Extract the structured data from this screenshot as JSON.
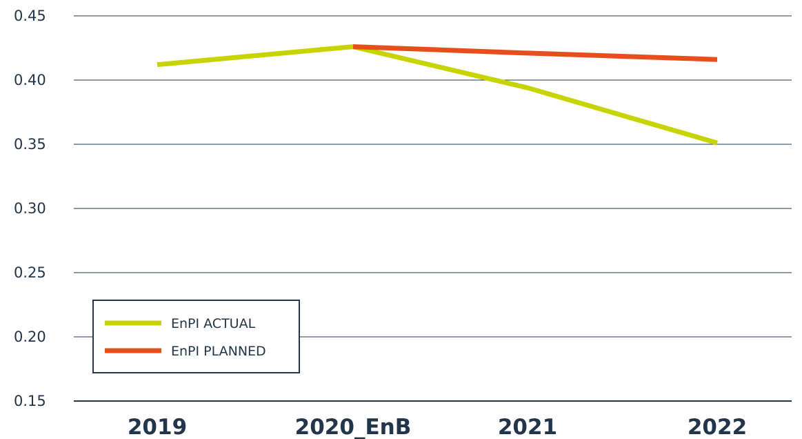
{
  "chart_data": {
    "type": "line",
    "categories": [
      "2019",
      "2020_EnB",
      "2021",
      "2022"
    ],
    "series": [
      {
        "name": "EnPI ACTUAL",
        "color": "#c8d400",
        "values": [
          0.412,
          0.426,
          0.394,
          0.351
        ]
      },
      {
        "name": "EnPI PLANNED",
        "color": "#e84e1b",
        "values": [
          null,
          0.426,
          0.421,
          0.416
        ]
      }
    ],
    "yticks": [
      "0.15",
      "0.20",
      "0.25",
      "0.30",
      "0.35",
      "0.40",
      "0.45"
    ],
    "ylim": [
      0.15,
      0.45
    ],
    "grid": true,
    "legend_position": "bottom-left",
    "axis_color": "#22354a"
  }
}
